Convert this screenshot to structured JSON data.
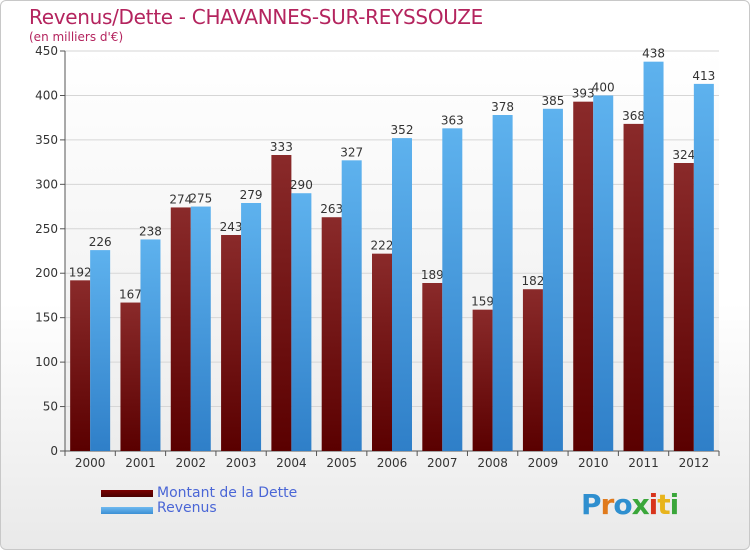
{
  "chart_data": {
    "type": "bar",
    "title": "Revenus/Dette - CHAVANNES-SUR-REYSSOUZE",
    "subtitle": "(en milliers d'€)",
    "categories": [
      "2000",
      "2001",
      "2002",
      "2003",
      "2004",
      "2005",
      "2006",
      "2007",
      "2008",
      "2009",
      "2010",
      "2011",
      "2012"
    ],
    "series": [
      {
        "name": "Montant de la Dette",
        "values": [
          192,
          167,
          274,
          243,
          333,
          263,
          222,
          189,
          159,
          182,
          393,
          368,
          324
        ],
        "color": "#7a1a1a"
      },
      {
        "name": "Revenus",
        "values": [
          226,
          238,
          275,
          279,
          290,
          327,
          352,
          363,
          378,
          385,
          400,
          438,
          413
        ],
        "color": "#4a9de0"
      }
    ],
    "ylim": [
      0,
      450
    ],
    "yticks": [
      0,
      50,
      100,
      150,
      200,
      250,
      300,
      350,
      400,
      450
    ],
    "grid": true,
    "legend_position": "bottom-left"
  },
  "logo": {
    "letters": [
      {
        "ch": "P",
        "color": "#2f8fcf"
      },
      {
        "ch": "r",
        "color": "#e07a1c"
      },
      {
        "ch": "o",
        "color": "#2f8fcf"
      },
      {
        "ch": "x",
        "color": "#3aa63a"
      },
      {
        "ch": "i",
        "color": "#d8341c"
      },
      {
        "ch": "t",
        "color": "#e8b41c"
      },
      {
        "ch": "i",
        "color": "#3aa63a"
      }
    ]
  }
}
